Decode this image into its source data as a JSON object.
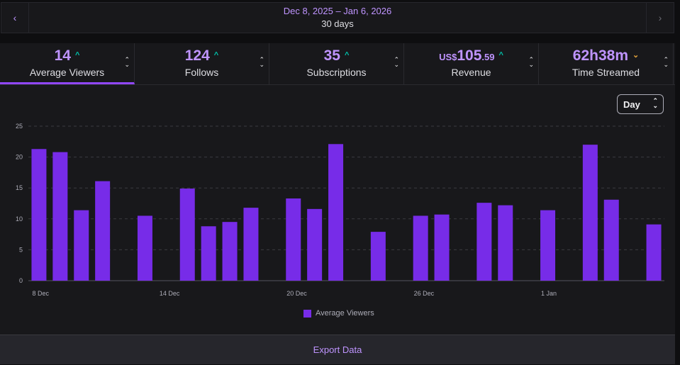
{
  "date_nav": {
    "range": "Dec 8, 2025 – Jan 6, 2026",
    "duration": "30 days",
    "prev_glyph": "‹",
    "next_glyph": "›"
  },
  "stats": [
    {
      "value": "14",
      "label": "Average Viewers",
      "trend": "up",
      "active": true
    },
    {
      "value": "124",
      "label": "Follows",
      "trend": "up",
      "active": false
    },
    {
      "value": "35",
      "label": "Subscriptions",
      "trend": "up",
      "active": false
    },
    {
      "currency": "US$",
      "value": "105",
      "cents": ".59",
      "label": "Revenue",
      "trend": "up",
      "active": false
    },
    {
      "value": "62h38m",
      "label": "Time Streamed",
      "trend": "down",
      "active": false
    }
  ],
  "granularity": {
    "selected": "Day"
  },
  "export_label": "Export Data",
  "colors": {
    "bar": "#772ce8",
    "accent": "#bf94ff",
    "up": "#00c8af",
    "down": "#e2a23b"
  },
  "chart_data": {
    "type": "bar",
    "x": [
      "8 Dec",
      "9 Dec",
      "10 Dec",
      "11 Dec",
      "12 Dec",
      "13 Dec",
      "14 Dec",
      "15 Dec",
      "16 Dec",
      "17 Dec",
      "18 Dec",
      "19 Dec",
      "20 Dec",
      "21 Dec",
      "22 Dec",
      "23 Dec",
      "24 Dec",
      "25 Dec",
      "26 Dec",
      "27 Dec",
      "28 Dec",
      "29 Dec",
      "30 Dec",
      "31 Dec",
      "1 Jan",
      "2 Jan",
      "3 Jan",
      "4 Jan",
      "5 Jan",
      "6 Jan"
    ],
    "xticks": [
      "8 Dec",
      "14 Dec",
      "20 Dec",
      "26 Dec",
      "1 Jan"
    ],
    "series": [
      {
        "name": "Average Viewers",
        "values": [
          21.3,
          20.8,
          11.4,
          16.1,
          null,
          10.5,
          null,
          14.9,
          8.8,
          9.5,
          11.8,
          null,
          13.3,
          11.6,
          22.1,
          null,
          7.9,
          null,
          10.5,
          10.7,
          null,
          12.6,
          12.2,
          null,
          11.4,
          null,
          22.0,
          13.1,
          null,
          9.1
        ]
      }
    ],
    "ylim": [
      0,
      25
    ],
    "yticks": [
      0,
      5,
      10,
      15,
      20,
      25
    ],
    "grid": true,
    "legend": "bottom-center"
  }
}
